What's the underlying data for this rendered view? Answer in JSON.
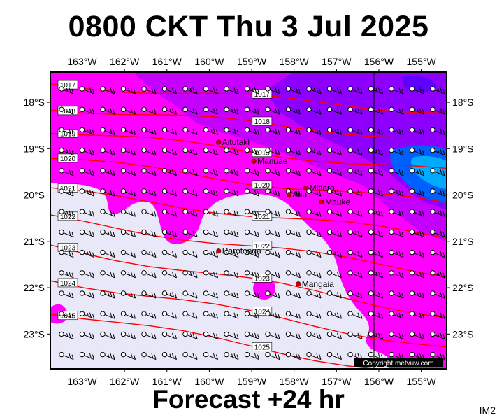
{
  "header": {
    "title": "0800 CKT Thu 3 Jul 2025"
  },
  "footer": {
    "subtitle": "Forecast +24 hr",
    "badge": "IM2"
  },
  "map": {
    "copyright": "Copyright metvuw.com",
    "lon_labels": [
      "163°W",
      "162°W",
      "161°W",
      "160°W",
      "159°W",
      "158°W",
      "157°W",
      "156°W",
      "155°W"
    ],
    "lat_labels": [
      "18°S",
      "19°S",
      "20°S",
      "21°S",
      "22°S",
      "23°S"
    ],
    "places": [
      {
        "name": "Aitutaki",
        "lon": -159.78,
        "lat": -18.86
      },
      {
        "name": "Manuae",
        "lon": -158.95,
        "lat": -19.27
      },
      {
        "name": "Mitiaro",
        "lon": -157.72,
        "lat": -19.85
      },
      {
        "name": "Atiu",
        "lon": -158.12,
        "lat": -19.99
      },
      {
        "name": "Mauke",
        "lon": -157.35,
        "lat": -20.15
      },
      {
        "name": "Rarotonga",
        "lon": -159.78,
        "lat": -21.21
      },
      {
        "name": "Mangaia",
        "lon": -157.9,
        "lat": -21.92
      }
    ],
    "isobars": [
      {
        "label": "1017",
        "lat0": -17.6,
        "lat1": -18.2
      },
      {
        "label": "1018",
        "lat0": -18.1,
        "lat1": -18.8
      },
      {
        "label": "1019",
        "lat0": -18.6,
        "lat1": -19.5
      },
      {
        "label": "1020",
        "lat0": -19.2,
        "lat1": -20.2
      },
      {
        "label": "1021",
        "lat0": -19.9,
        "lat1": -20.9
      },
      {
        "label": "1022",
        "lat0": -20.5,
        "lat1": -21.7
      },
      {
        "label": "1023",
        "lat0": -21.1,
        "lat1": -22.6
      },
      {
        "label": "1024",
        "lat0": -21.8,
        "lat1": -23.3
      },
      {
        "label": "1025",
        "lat0": -22.5,
        "lat1": -24.0
      }
    ]
  }
}
